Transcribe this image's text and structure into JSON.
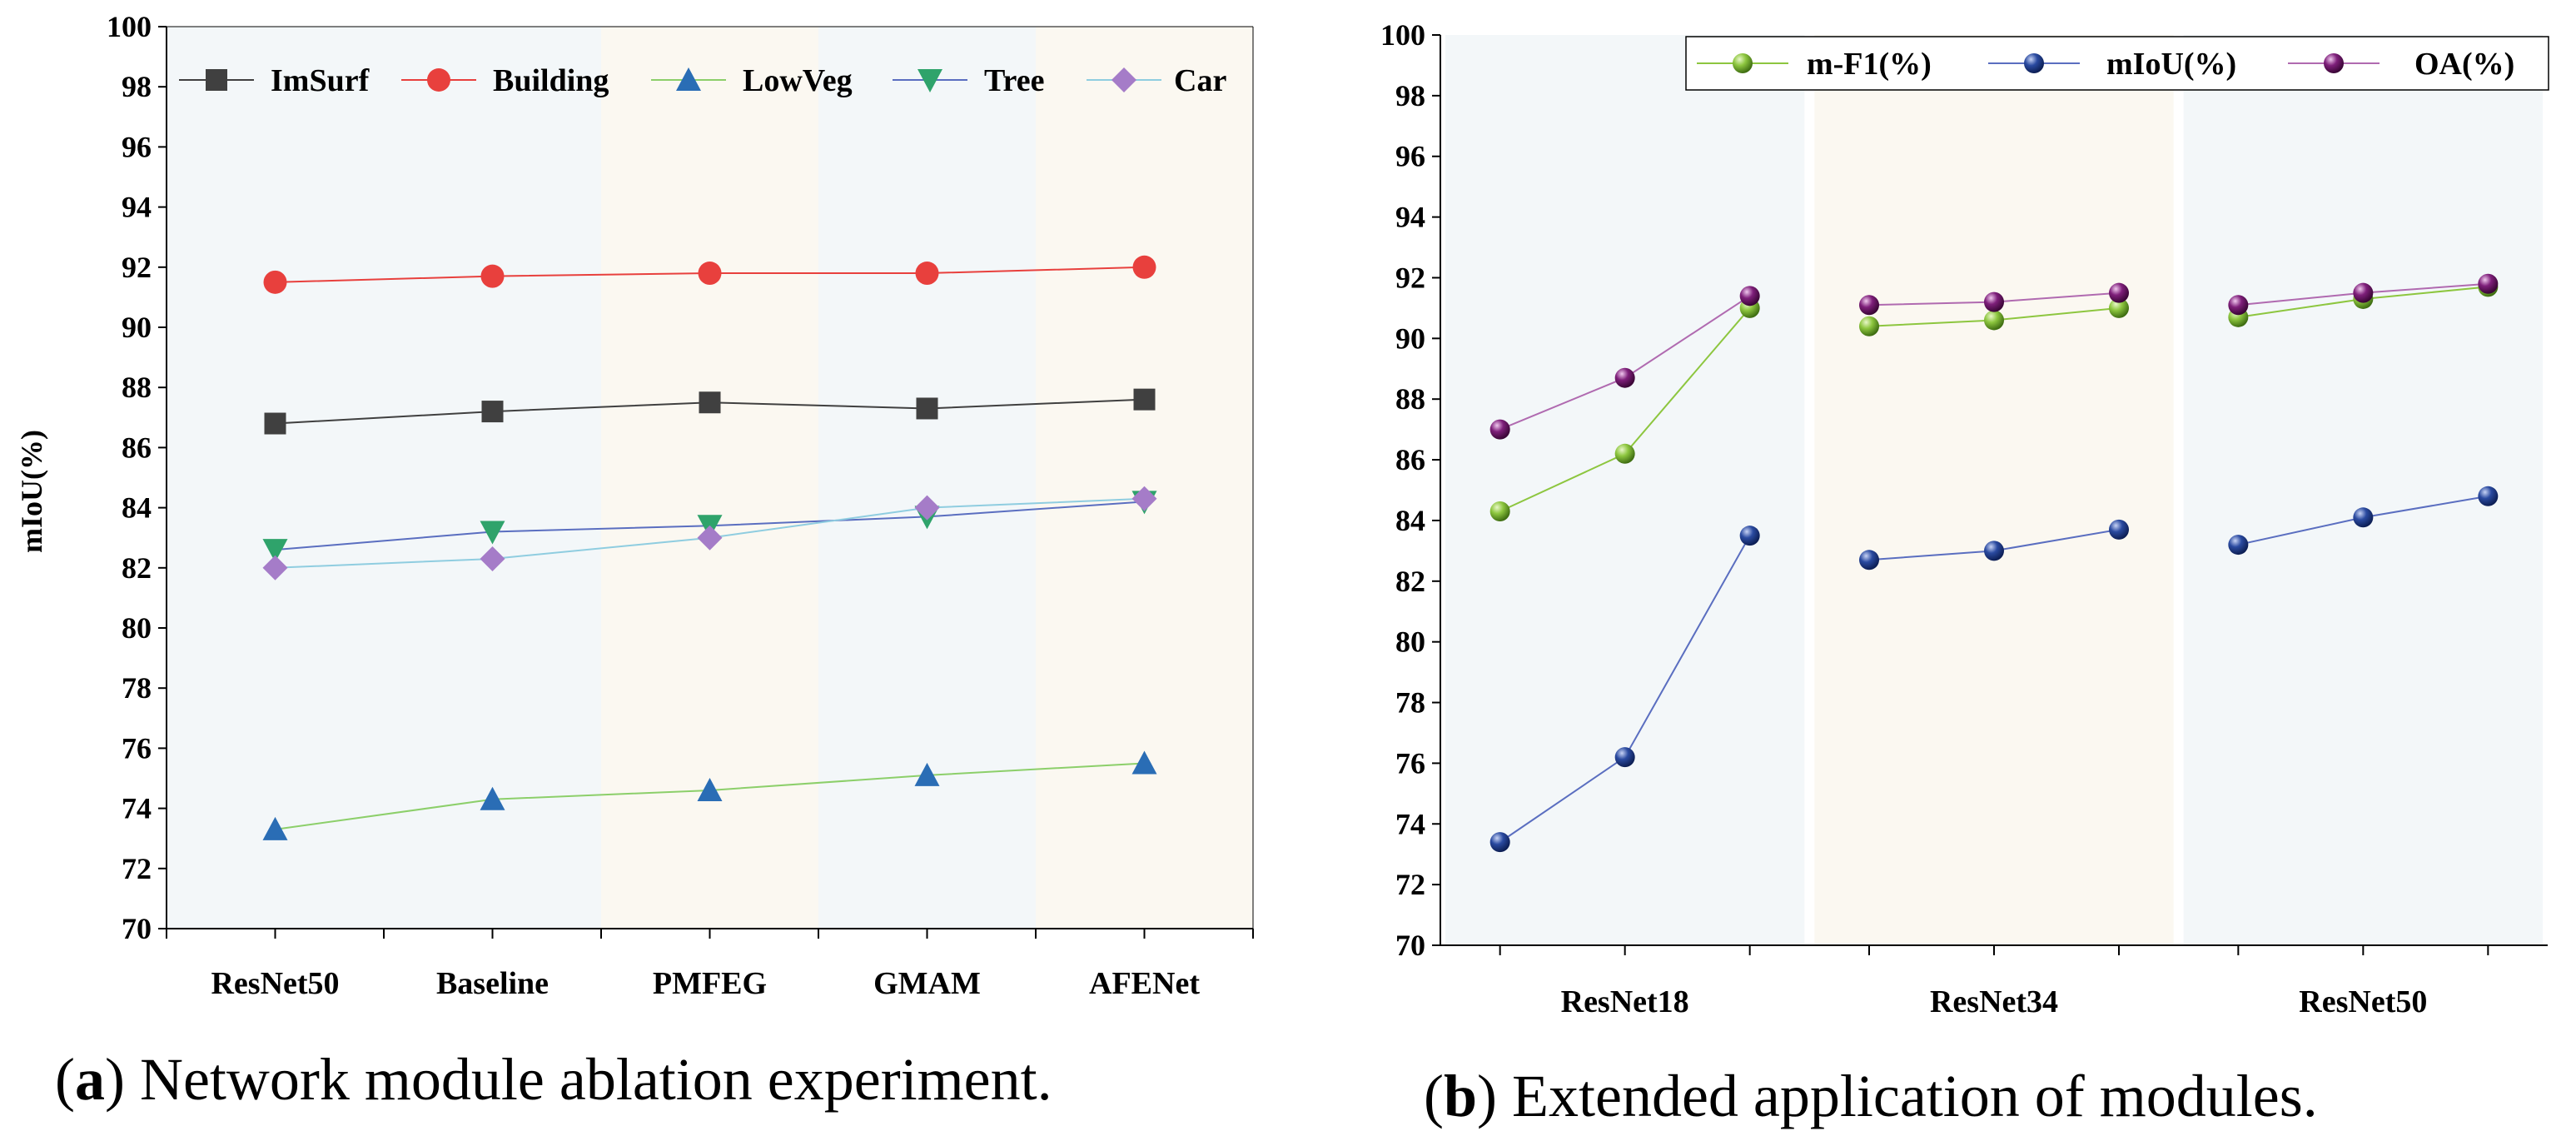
{
  "chart_data": [
    {
      "type": "line",
      "caption_letter": "a",
      "caption_text": ") Network module ablation experiment.",
      "ylabel": "mIoU(%)",
      "ylim": [
        70,
        100
      ],
      "y_ticks": [
        "70",
        "72",
        "74",
        "76",
        "78",
        "80",
        "82",
        "84",
        "86",
        "88",
        "90",
        "92",
        "94",
        "96",
        "98",
        "100"
      ],
      "categories": [
        "ResNet50",
        "Baseline",
        "PMFEG",
        "GMAM",
        "AFENet"
      ],
      "background_bands": [
        "#f3f7f9",
        "#f3f7f9",
        "#fbf8f1",
        "#f3f7f9",
        "#fbf8f1"
      ],
      "legend_position": "top",
      "series": [
        {
          "name": "ImSurf",
          "marker": "square",
          "color": "#404040",
          "line_color": "#404040",
          "values": [
            86.8,
            87.2,
            87.5,
            87.3,
            87.6
          ]
        },
        {
          "name": "Building",
          "marker": "circle",
          "color": "#e8403d",
          "line_color": "#e8403d",
          "values": [
            91.5,
            91.7,
            91.8,
            91.8,
            92.0
          ]
        },
        {
          "name": "LowVeg",
          "marker": "triangle-up",
          "color": "#2a6db5",
          "line_color": "#8ccf6a",
          "values": [
            73.3,
            74.3,
            74.6,
            75.1,
            75.5
          ]
        },
        {
          "name": "Tree",
          "marker": "triangle-down",
          "color": "#2fa36b",
          "line_color": "#5a6ec0",
          "values": [
            82.6,
            83.2,
            83.4,
            83.7,
            84.2
          ]
        },
        {
          "name": "Car",
          "marker": "diamond",
          "color": "#a57cc8",
          "line_color": "#8fcde0",
          "values": [
            82.0,
            82.3,
            83.0,
            84.0,
            84.3
          ]
        }
      ]
    },
    {
      "type": "line",
      "caption_letter": "b",
      "caption_text": ") Extended application of modules.",
      "ylabel": "",
      "ylim": [
        70,
        100
      ],
      "y_ticks": [
        "70",
        "72",
        "74",
        "76",
        "78",
        "80",
        "82",
        "84",
        "86",
        "88",
        "90",
        "92",
        "94",
        "96",
        "98",
        "100"
      ],
      "groups": [
        "ResNet18",
        "ResNet34",
        "ResNet50"
      ],
      "background_bands": [
        "#f3f7f9",
        "#fbf8f1",
        "#f3f7f9"
      ],
      "legend_position": "top-right",
      "series": [
        {
          "name": "m-F1(%)",
          "color": "#8dc63f",
          "line_color": "#8dc63f",
          "values": [
            84.3,
            86.2,
            91.0,
            90.4,
            90.6,
            91.0,
            90.7,
            91.3,
            91.7
          ]
        },
        {
          "name": "mIoU(%)",
          "color": "#2a4aa0",
          "line_color": "#5a6ec0",
          "values": [
            73.4,
            76.2,
            83.5,
            82.7,
            83.0,
            83.7,
            83.2,
            84.1,
            84.8
          ]
        },
        {
          "name": "OA(%)",
          "color": "#7e1f7a",
          "line_color": "#b06ab0",
          "values": [
            87.0,
            88.7,
            91.4,
            91.1,
            91.2,
            91.5,
            91.1,
            91.5,
            91.8
          ]
        }
      ]
    }
  ]
}
